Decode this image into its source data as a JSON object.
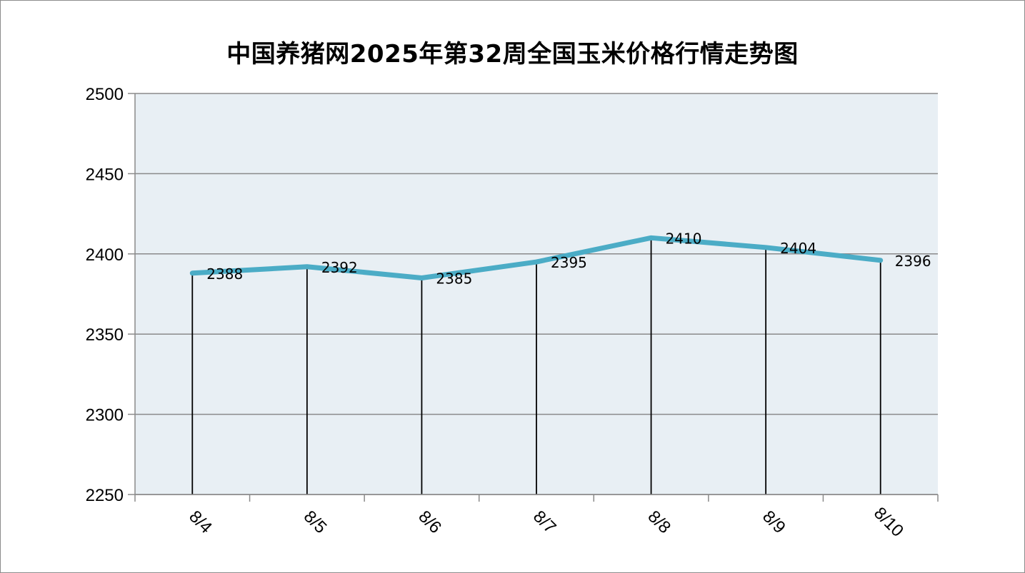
{
  "chart_data": {
    "type": "line",
    "title": "中国养猪网2025年第32周全国玉米价格行情走势图",
    "categories": [
      "8/4",
      "8/5",
      "8/6",
      "8/7",
      "8/8",
      "8/9",
      "8/10"
    ],
    "series": [
      {
        "values": [
          2388,
          2392,
          2385,
          2395,
          2410,
          2404,
          2396
        ]
      }
    ],
    "data_labels": [
      "2388",
      "2392",
      "2385",
      "2395",
      "2410",
      "2404",
      "2396"
    ],
    "ylim": [
      2250,
      2500
    ],
    "yticks": [
      2250,
      2300,
      2350,
      2400,
      2450,
      2500
    ],
    "ytick_labels": [
      "2250",
      "2300",
      "2350",
      "2400",
      "2450",
      "2500"
    ],
    "grid": true,
    "drop_lines": true,
    "line_color": "#4bacc6",
    "plot_background": "#e8eff4"
  }
}
